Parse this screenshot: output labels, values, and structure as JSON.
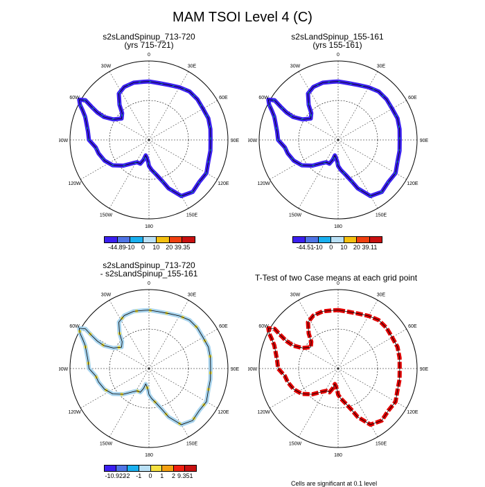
{
  "main_title": "MAM TSOI Level 4 (C)",
  "panels": [
    {
      "title_line1": "s2sLandSpinup_713-720",
      "title_line2": "(yrs 715-721)",
      "field": "case1"
    },
    {
      "title_line1": "s2sLandSpinup_155-161",
      "title_line2": "(yrs 155-161)",
      "field": "case2"
    },
    {
      "title_line1": "s2sLandSpinup_713-720",
      "title_line2": "- s2sLandSpinup_155-161",
      "field": "diff"
    },
    {
      "title_line1": "T-Test of two Case means at each grid point",
      "title_line2": "",
      "field": "ttest"
    }
  ],
  "longitude_labels": [
    "0",
    "30E",
    "60E",
    "90E",
    "120E",
    "150E",
    "180",
    "150W",
    "120W",
    "90W",
    "60W",
    "30W"
  ],
  "legends": {
    "case1": {
      "colors": [
        "#3b1ff0",
        "#4f74e6",
        "#1ab0f0",
        "#b9e0f5",
        "#f5c010",
        "#f04010",
        "#c81010"
      ],
      "labels": [
        "-44.89",
        "-10",
        "0",
        "10",
        "20",
        "39.35"
      ]
    },
    "case2": {
      "colors": [
        "#3b1ff0",
        "#4f74e6",
        "#1ab0f0",
        "#b9e0f5",
        "#f5c010",
        "#f04010",
        "#c81010"
      ],
      "labels": [
        "-44.51",
        "-10",
        "0",
        "10",
        "20",
        "39.11"
      ]
    },
    "diff": {
      "colors": [
        "#3b1ff0",
        "#4f74e6",
        "#1ab0f0",
        "#b9e0f5",
        "#f5e040",
        "#f5a010",
        "#f02010",
        "#c81010"
      ],
      "labels": [
        "-10.922",
        "-2",
        "-1",
        "0",
        "1",
        "2",
        "9.351"
      ]
    }
  },
  "footnote": "Cells are significant at 0.1 level",
  "colors": {
    "case_coast": "#3b1ff0",
    "case_accent": "#1ab0f0",
    "diff_fill": "#a8d4ee",
    "diff_yellow": "#f5e040",
    "ttest_fill": "#e00000"
  }
}
